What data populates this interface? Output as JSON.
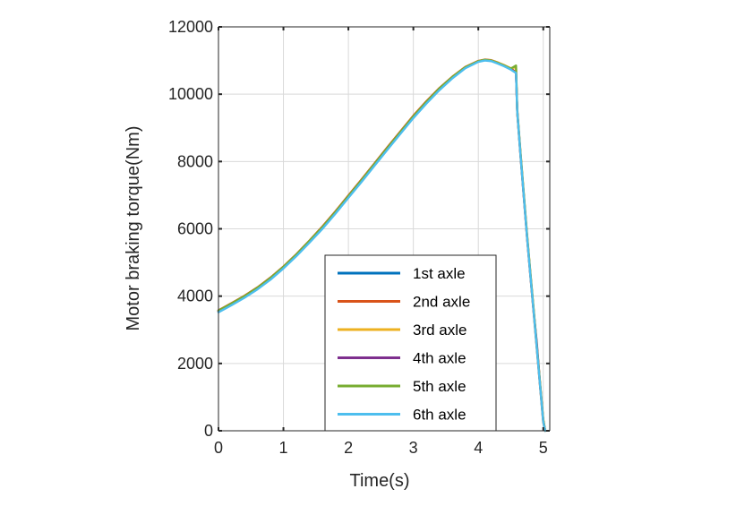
{
  "chart_data": {
    "type": "line",
    "xlabel": "Time(s)",
    "ylabel": "Motor braking torque(Nm)",
    "xlim": [
      0,
      5.1
    ],
    "ylim": [
      0,
      12000
    ],
    "xticks": [
      0,
      1,
      2,
      3,
      4,
      5
    ],
    "yticks": [
      0,
      2000,
      4000,
      6000,
      8000,
      10000,
      12000
    ],
    "xtick_labels": [
      "0",
      "1",
      "2",
      "3",
      "4",
      "5"
    ],
    "ytick_labels": [
      "0",
      "2000",
      "4000",
      "6000",
      "8000",
      "10000",
      "12000"
    ],
    "grid": true,
    "legend_position": "lower-center",
    "x": [
      0,
      0.2,
      0.4,
      0.6,
      0.8,
      1.0,
      1.2,
      1.4,
      1.6,
      1.8,
      2.0,
      2.2,
      2.4,
      2.6,
      2.8,
      3.0,
      3.2,
      3.4,
      3.6,
      3.8,
      4.0,
      4.1,
      4.2,
      4.3,
      4.4,
      4.5,
      4.58,
      4.6,
      4.65,
      4.7,
      4.75,
      4.8,
      4.85,
      4.9,
      4.95,
      5.0,
      5.03
    ],
    "series": [
      {
        "name": "1st axle",
        "color": "#0072BD",
        "values": [
          3550,
          3760,
          3980,
          4230,
          4520,
          4850,
          5220,
          5620,
          6030,
          6480,
          6950,
          7420,
          7900,
          8380,
          8850,
          9320,
          9750,
          10150,
          10500,
          10800,
          10980,
          11020,
          11000,
          10930,
          10850,
          10750,
          10650,
          9500,
          8200,
          7000,
          5800,
          4700,
          3600,
          2500,
          1400,
          300,
          0
        ]
      },
      {
        "name": "2nd axle",
        "color": "#D95319",
        "values": [
          3580,
          3790,
          4010,
          4260,
          4550,
          4880,
          5250,
          5650,
          6070,
          6520,
          6990,
          7460,
          7940,
          8420,
          8890,
          9360,
          9790,
          10180,
          10520,
          10810,
          10990,
          11030,
          11010,
          10940,
          10860,
          10760,
          10660,
          9450,
          8150,
          6950,
          5750,
          4650,
          3550,
          2450,
          1350,
          250,
          0
        ]
      },
      {
        "name": "3rd axle",
        "color": "#EDB120",
        "values": [
          3560,
          3770,
          3990,
          4240,
          4530,
          4860,
          5230,
          5630,
          6040,
          6490,
          6960,
          7430,
          7910,
          8390,
          8860,
          9330,
          9760,
          10160,
          10510,
          10800,
          10980,
          11020,
          11000,
          10940,
          10860,
          10770,
          10800,
          9550,
          8250,
          7050,
          5850,
          4750,
          3650,
          2550,
          1450,
          350,
          0
        ]
      },
      {
        "name": "4th axle",
        "color": "#7E2F8E",
        "values": [
          3540,
          3750,
          3970,
          4220,
          4510,
          4840,
          5210,
          5610,
          6020,
          6470,
          6940,
          7410,
          7890,
          8370,
          8840,
          9310,
          9740,
          10140,
          10490,
          10790,
          10970,
          11010,
          10990,
          10920,
          10840,
          10740,
          10640,
          9500,
          8180,
          6980,
          5780,
          4680,
          3580,
          2620,
          1400,
          320,
          0
        ]
      },
      {
        "name": "5th axle",
        "color": "#77AC30",
        "values": [
          3570,
          3780,
          4000,
          4250,
          4540,
          4870,
          5240,
          5640,
          6050,
          6500,
          6970,
          7440,
          7920,
          8400,
          8870,
          9340,
          9770,
          10170,
          10510,
          10800,
          10980,
          11020,
          11000,
          10930,
          10850,
          10760,
          10850,
          9480,
          8220,
          7020,
          5820,
          4720,
          3620,
          2520,
          1420,
          320,
          0
        ]
      },
      {
        "name": "6th axle",
        "color": "#4DBEEE",
        "values": [
          3520,
          3730,
          3950,
          4200,
          4490,
          4820,
          5190,
          5590,
          6000,
          6450,
          6920,
          7390,
          7870,
          8350,
          8820,
          9290,
          9720,
          10120,
          10470,
          10770,
          10960,
          11000,
          10980,
          10910,
          10830,
          10730,
          10630,
          9480,
          8170,
          6970,
          5770,
          4670,
          3570,
          2470,
          1370,
          270,
          0
        ]
      }
    ]
  }
}
